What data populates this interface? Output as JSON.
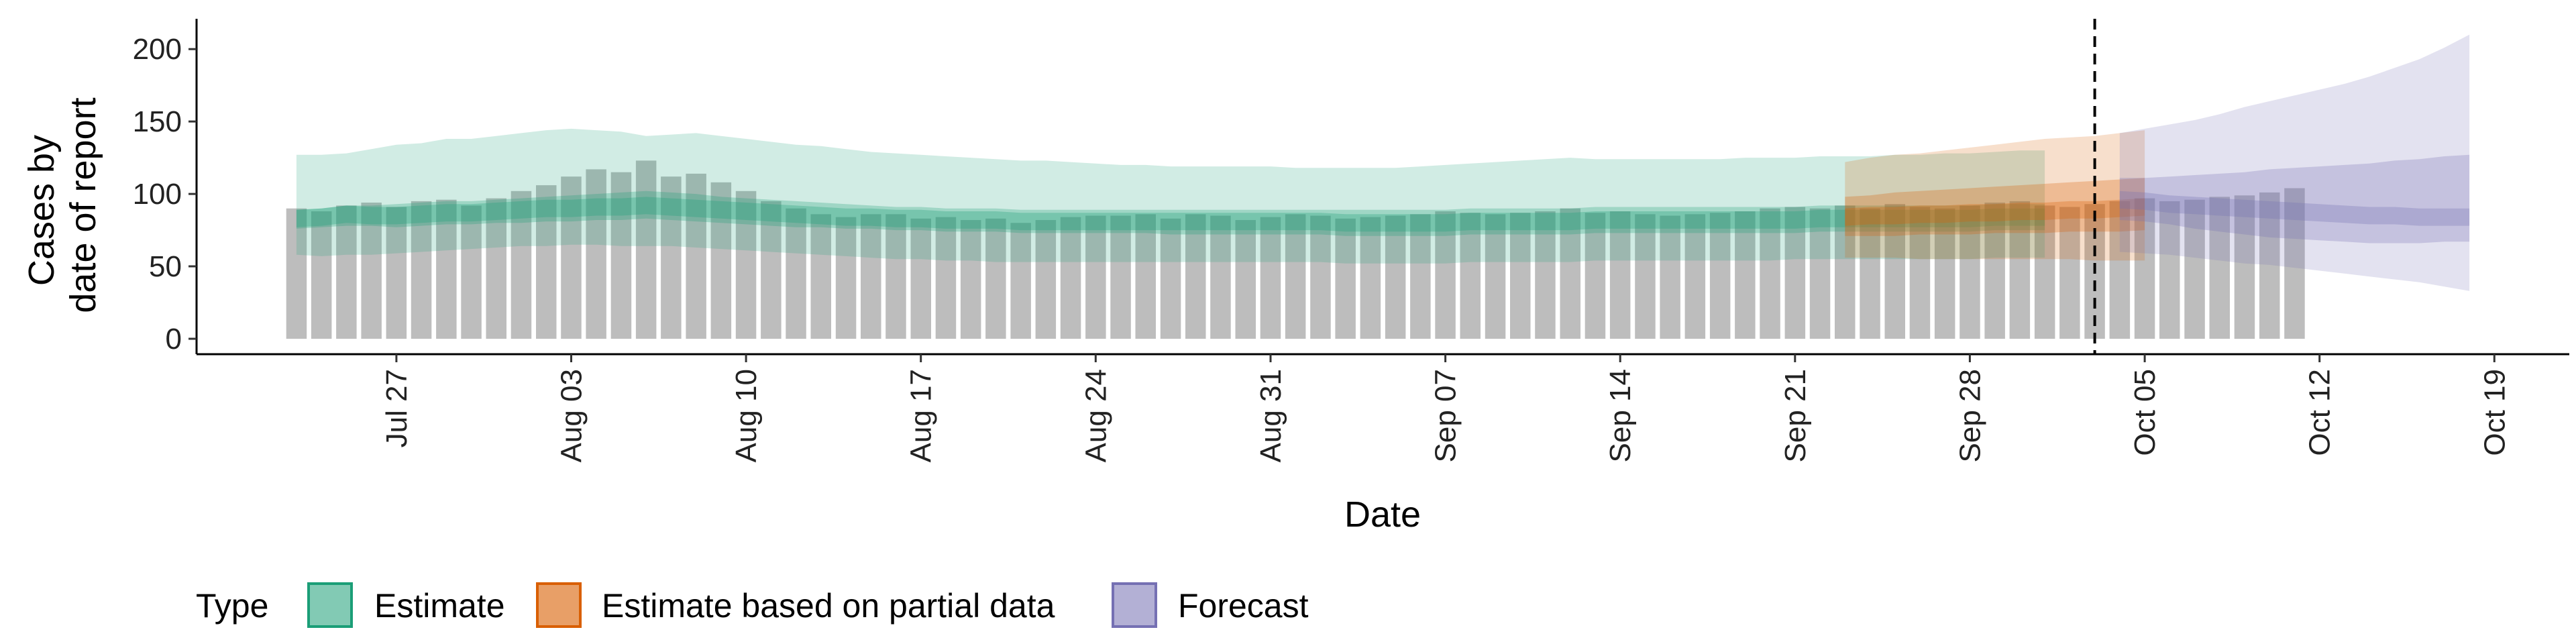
{
  "chart_data": {
    "type": "area",
    "title": "",
    "xlabel": "Date",
    "ylabel_lines": [
      "Cases by",
      "date of report"
    ],
    "ylim": [
      0,
      220
    ],
    "y_ticks": [
      0,
      50,
      100,
      150,
      200
    ],
    "xlim": [
      "2020-07-19",
      "2020-10-22"
    ],
    "x_ticks": [
      {
        "date": "2020-07-27",
        "label": "Jul 27"
      },
      {
        "date": "2020-08-03",
        "label": "Aug 03"
      },
      {
        "date": "2020-08-10",
        "label": "Aug 10"
      },
      {
        "date": "2020-08-17",
        "label": "Aug 17"
      },
      {
        "date": "2020-08-24",
        "label": "Aug 24"
      },
      {
        "date": "2020-08-31",
        "label": "Aug 31"
      },
      {
        "date": "2020-09-07",
        "label": "Sep 07"
      },
      {
        "date": "2020-09-14",
        "label": "Sep 14"
      },
      {
        "date": "2020-09-21",
        "label": "Sep 21"
      },
      {
        "date": "2020-09-28",
        "label": "Sep 28"
      },
      {
        "date": "2020-10-05",
        "label": "Oct 05"
      },
      {
        "date": "2020-10-12",
        "label": "Oct 12"
      },
      {
        "date": "2020-10-19",
        "label": "Oct 19"
      }
    ],
    "forecast_line_date": "2020-10-03",
    "bar_color": "#bdbdbd",
    "bars": {
      "start_date": "2020-07-23",
      "values": [
        90,
        88,
        92,
        94,
        91,
        95,
        96,
        92,
        97,
        102,
        106,
        112,
        117,
        115,
        123,
        112,
        114,
        108,
        102,
        95,
        90,
        86,
        84,
        86,
        86,
        83,
        84,
        82,
        83,
        80,
        82,
        84,
        85,
        85,
        86,
        83,
        86,
        85,
        82,
        84,
        86,
        85,
        83,
        84,
        85,
        86,
        88,
        87,
        86,
        87,
        88,
        90,
        87,
        88,
        86,
        85,
        86,
        87,
        88,
        90,
        91,
        90,
        92,
        90,
        93,
        91,
        90,
        92,
        94,
        95,
        92,
        91,
        93,
        95,
        97,
        95,
        96,
        98,
        99,
        101,
        104
      ]
    },
    "series": [
      {
        "name": "Estimate",
        "color": "#1b9e77",
        "start_date": "2020-07-23",
        "median": [
          83,
          84,
          86,
          85,
          85,
          86,
          87,
          87,
          88,
          89,
          90,
          90,
          91,
          91,
          92,
          91,
          90,
          89,
          88,
          87,
          86,
          85,
          84,
          84,
          83,
          83,
          82,
          82,
          82,
          81,
          81,
          81,
          81,
          81,
          81,
          81,
          81,
          81,
          81,
          81,
          81,
          81,
          80,
          80,
          80,
          80,
          80,
          81,
          81,
          81,
          81,
          81,
          82,
          82,
          82,
          82,
          82,
          82,
          82,
          82,
          82,
          83,
          83,
          83,
          83,
          83,
          83,
          83,
          84,
          84,
          84
        ],
        "inner": [
          [
            76,
            89
          ],
          [
            77,
            90
          ],
          [
            78,
            92
          ],
          [
            78,
            92
          ],
          [
            77,
            93
          ],
          [
            78,
            94
          ],
          [
            79,
            95
          ],
          [
            79,
            95
          ],
          [
            80,
            96
          ],
          [
            80,
            97
          ],
          [
            81,
            98
          ],
          [
            81,
            99
          ],
          [
            82,
            100
          ],
          [
            82,
            101
          ],
          [
            83,
            102
          ],
          [
            82,
            101
          ],
          [
            81,
            100
          ],
          [
            80,
            98
          ],
          [
            79,
            97
          ],
          [
            78,
            96
          ],
          [
            77,
            95
          ],
          [
            77,
            94
          ],
          [
            76,
            93
          ],
          [
            76,
            92
          ],
          [
            75,
            91
          ],
          [
            75,
            91
          ],
          [
            74,
            90
          ],
          [
            74,
            90
          ],
          [
            74,
            90
          ],
          [
            73,
            89
          ],
          [
            73,
            89
          ],
          [
            73,
            89
          ],
          [
            73,
            89
          ],
          [
            73,
            89
          ],
          [
            73,
            89
          ],
          [
            72,
            89
          ],
          [
            72,
            89
          ],
          [
            72,
            89
          ],
          [
            72,
            89
          ],
          [
            72,
            89
          ],
          [
            72,
            89
          ],
          [
            72,
            89
          ],
          [
            71,
            89
          ],
          [
            71,
            89
          ],
          [
            71,
            89
          ],
          [
            71,
            89
          ],
          [
            71,
            89
          ],
          [
            72,
            90
          ],
          [
            72,
            90
          ],
          [
            72,
            90
          ],
          [
            72,
            90
          ],
          [
            72,
            90
          ],
          [
            73,
            91
          ],
          [
            73,
            91
          ],
          [
            73,
            91
          ],
          [
            73,
            91
          ],
          [
            73,
            91
          ],
          [
            73,
            91
          ],
          [
            73,
            91
          ],
          [
            73,
            91
          ],
          [
            73,
            91
          ],
          [
            74,
            92
          ],
          [
            74,
            92
          ],
          [
            74,
            92
          ],
          [
            74,
            92
          ],
          [
            74,
            92
          ],
          [
            74,
            92
          ],
          [
            74,
            92
          ],
          [
            75,
            93
          ],
          [
            75,
            93
          ],
          [
            75,
            93
          ]
        ],
        "outer": [
          [
            58,
            127
          ],
          [
            57,
            127
          ],
          [
            58,
            128
          ],
          [
            58,
            131
          ],
          [
            59,
            134
          ],
          [
            60,
            135
          ],
          [
            61,
            138
          ],
          [
            62,
            138
          ],
          [
            63,
            140
          ],
          [
            64,
            142
          ],
          [
            64,
            144
          ],
          [
            65,
            145
          ],
          [
            65,
            144
          ],
          [
            64,
            143
          ],
          [
            64,
            140
          ],
          [
            64,
            141
          ],
          [
            63,
            142
          ],
          [
            62,
            140
          ],
          [
            61,
            138
          ],
          [
            60,
            136
          ],
          [
            59,
            134
          ],
          [
            58,
            133
          ],
          [
            57,
            131
          ],
          [
            56,
            129
          ],
          [
            55,
            128
          ],
          [
            55,
            127
          ],
          [
            54,
            126
          ],
          [
            54,
            125
          ],
          [
            53,
            124
          ],
          [
            53,
            123
          ],
          [
            53,
            123
          ],
          [
            53,
            122
          ],
          [
            53,
            121
          ],
          [
            53,
            120
          ],
          [
            53,
            120
          ],
          [
            53,
            119
          ],
          [
            53,
            119
          ],
          [
            53,
            119
          ],
          [
            53,
            119
          ],
          [
            53,
            119
          ],
          [
            53,
            118
          ],
          [
            53,
            118
          ],
          [
            52,
            118
          ],
          [
            52,
            118
          ],
          [
            52,
            118
          ],
          [
            52,
            119
          ],
          [
            52,
            120
          ],
          [
            53,
            121
          ],
          [
            53,
            122
          ],
          [
            53,
            123
          ],
          [
            53,
            124
          ],
          [
            53,
            125
          ],
          [
            54,
            124
          ],
          [
            54,
            124
          ],
          [
            54,
            124
          ],
          [
            54,
            124
          ],
          [
            54,
            124
          ],
          [
            54,
            124
          ],
          [
            54,
            125
          ],
          [
            54,
            125
          ],
          [
            55,
            125
          ],
          [
            55,
            126
          ],
          [
            55,
            126
          ],
          [
            55,
            126
          ],
          [
            55,
            127
          ],
          [
            55,
            127
          ],
          [
            55,
            128
          ],
          [
            55,
            128
          ],
          [
            56,
            129
          ],
          [
            56,
            130
          ],
          [
            56,
            130
          ]
        ]
      },
      {
        "name": "Estimate based on partial data",
        "color": "#d95f02",
        "start_date": "2020-09-23",
        "median": [
          84,
          85,
          85,
          86,
          86,
          87,
          87,
          88,
          88,
          89,
          89,
          90,
          91
        ],
        "inner": [
          [
            71,
            98
          ],
          [
            71,
            99
          ],
          [
            71,
            101
          ],
          [
            72,
            102
          ],
          [
            72,
            103
          ],
          [
            72,
            104
          ],
          [
            73,
            105
          ],
          [
            73,
            106
          ],
          [
            73,
            107
          ],
          [
            74,
            108
          ],
          [
            74,
            109
          ],
          [
            74,
            110
          ],
          [
            75,
            111
          ]
        ],
        "outer": [
          [
            56,
            122
          ],
          [
            56,
            125
          ],
          [
            56,
            127
          ],
          [
            55,
            128
          ],
          [
            55,
            130
          ],
          [
            55,
            132
          ],
          [
            55,
            134
          ],
          [
            55,
            136
          ],
          [
            55,
            138
          ],
          [
            55,
            139
          ],
          [
            54,
            140
          ],
          [
            54,
            142
          ],
          [
            54,
            144
          ]
        ]
      },
      {
        "name": "Forecast",
        "color": "#7570b3",
        "start_date": "2020-10-04",
        "median": [
          96,
          95,
          93,
          92,
          91,
          90,
          89,
          88,
          87,
          86,
          85,
          85,
          84,
          84,
          84
        ],
        "inner": [
          [
            82,
            111
          ],
          [
            81,
            111
          ],
          [
            79,
            112
          ],
          [
            76,
            113
          ],
          [
            74,
            114
          ],
          [
            72,
            115
          ],
          [
            70,
            117
          ],
          [
            69,
            118
          ],
          [
            68,
            119
          ],
          [
            67,
            120
          ],
          [
            66,
            121
          ],
          [
            66,
            123
          ],
          [
            66,
            124
          ],
          [
            67,
            126
          ],
          [
            67,
            127
          ]
        ],
        "outer": [
          [
            60,
            142
          ],
          [
            59,
            145
          ],
          [
            58,
            148
          ],
          [
            56,
            151
          ],
          [
            54,
            155
          ],
          [
            52,
            160
          ],
          [
            51,
            164
          ],
          [
            49,
            168
          ],
          [
            47,
            172
          ],
          [
            45,
            176
          ],
          [
            43,
            181
          ],
          [
            41,
            187
          ],
          [
            39,
            193
          ],
          [
            36,
            201
          ],
          [
            33,
            210
          ]
        ]
      }
    ],
    "legend": {
      "title": "Type",
      "position": "bottom-left",
      "items": [
        {
          "label": "Estimate",
          "color": "#1b9e77"
        },
        {
          "label": "Estimate based on partial data",
          "color": "#d95f02"
        },
        {
          "label": "Forecast",
          "color": "#7570b3"
        }
      ]
    },
    "grid": false
  }
}
